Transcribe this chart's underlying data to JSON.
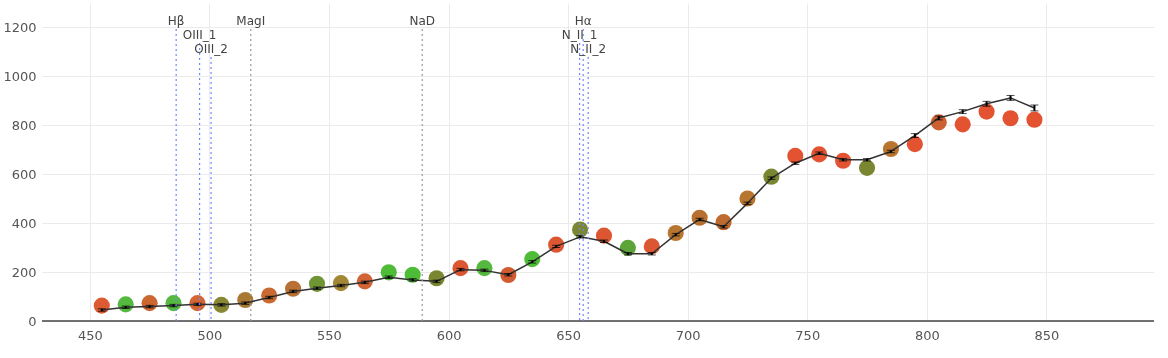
{
  "chart_data": {
    "type": "line",
    "x": [
      455,
      465,
      475,
      485,
      495,
      505,
      515,
      525,
      535,
      545,
      555,
      565,
      575,
      585,
      595,
      605,
      615,
      625,
      635,
      645,
      655,
      665,
      675,
      685,
      695,
      705,
      715,
      725,
      735,
      745,
      755,
      765,
      775,
      785,
      795,
      805,
      815,
      825,
      835,
      845
    ],
    "series": [
      {
        "type": "scatter",
        "marker": "circle",
        "colors": [
          "#d9491c",
          "#43b02a",
          "#c8561c",
          "#43b02a",
          "#cf5520",
          "#7a7a1e",
          "#a06a1e",
          "#c45a1c",
          "#b0601e",
          "#5f8a1e",
          "#9a7a1e",
          "#cc521e",
          "#3cb521",
          "#3cb521",
          "#6b7a1a",
          "#d9441c",
          "#43b02a",
          "#cc4a1c",
          "#3cb521",
          "#d9441c",
          "#6b7a1a",
          "#d9441c",
          "#4a9a22",
          "#d9441c",
          "#b0661a",
          "#b0601a",
          "#b85a1a",
          "#b0661a",
          "#6b7a1a",
          "#e0401c",
          "#e0401c",
          "#e0401c",
          "#6b7a1a",
          "#b0661a",
          "#e0401c",
          "#c8501c",
          "#e0401c",
          "#e0401c",
          "#e0401c",
          "#e0401c"
        ],
        "values": [
          63,
          68,
          73,
          73,
          73,
          66,
          86,
          104,
          132,
          152,
          155,
          162,
          199,
          189,
          175,
          216,
          216,
          188,
          253,
          312,
          374,
          349,
          299,
          305,
          360,
          422,
          404,
          501,
          590,
          675,
          681,
          655,
          626,
          703,
          723,
          812,
          804,
          856,
          829,
          823
        ]
      },
      {
        "color": "#333333",
        "marker": "none",
        "line_style": "solid",
        "values": [
          45,
          56,
          59,
          63,
          68,
          66,
          73,
          96,
          121,
          134,
          145,
          158,
          179,
          168,
          162,
          210,
          207,
          189,
          242,
          305,
          344,
          326,
          275,
          275,
          353,
          415,
          385,
          481,
          584,
          645,
          686,
          659,
          659,
          693,
          758,
          830,
          856,
          888,
          912,
          871
        ],
        "errors": [
          5,
          5,
          5,
          5,
          5,
          5,
          5,
          5,
          5,
          5,
          5,
          5,
          5,
          5,
          5,
          5,
          5,
          5,
          5,
          5,
          5,
          5,
          5,
          5,
          5,
          5,
          5,
          5,
          5,
          5,
          5,
          5,
          5,
          5,
          8,
          8,
          8,
          10,
          10,
          12
        ]
      }
    ],
    "ref_lines": [
      {
        "axis": "x",
        "value": 486.1,
        "label": "Hβ",
        "color": "#6f86ff",
        "line_style": "dotted"
      },
      {
        "axis": "x",
        "value": 495.9,
        "label": "OIII_1",
        "color": "#6f86ff",
        "line_style": "dotted"
      },
      {
        "axis": "x",
        "value": 500.7,
        "label": "OIII_2",
        "color": "#6f86ff",
        "line_style": "dotted"
      },
      {
        "axis": "x",
        "value": 517.3,
        "label": "MagI",
        "color": "#999999",
        "line_style": "dotted"
      },
      {
        "axis": "x",
        "value": 589.0,
        "label": "NaD",
        "color": "#999999",
        "line_style": "dotted"
      },
      {
        "axis": "x",
        "value": 656.3,
        "label": "Hα",
        "color": "#6f86ff",
        "line_style": "dotted"
      },
      {
        "axis": "x",
        "value": 654.8,
        "label": "N_II_1",
        "color": "#6f86ff",
        "line_style": "dotted"
      },
      {
        "axis": "x",
        "value": 658.4,
        "label": "N_II_2",
        "color": "#6f86ff",
        "line_style": "dotted"
      }
    ],
    "xlim": [
      430,
      895
    ],
    "xticks": [
      450,
      500,
      550,
      600,
      650,
      700,
      750,
      800,
      850
    ],
    "ylim": [
      0,
      1300
    ],
    "yticks": [
      0,
      200,
      400,
      600,
      800,
      1000,
      1200
    ],
    "grid": true
  }
}
